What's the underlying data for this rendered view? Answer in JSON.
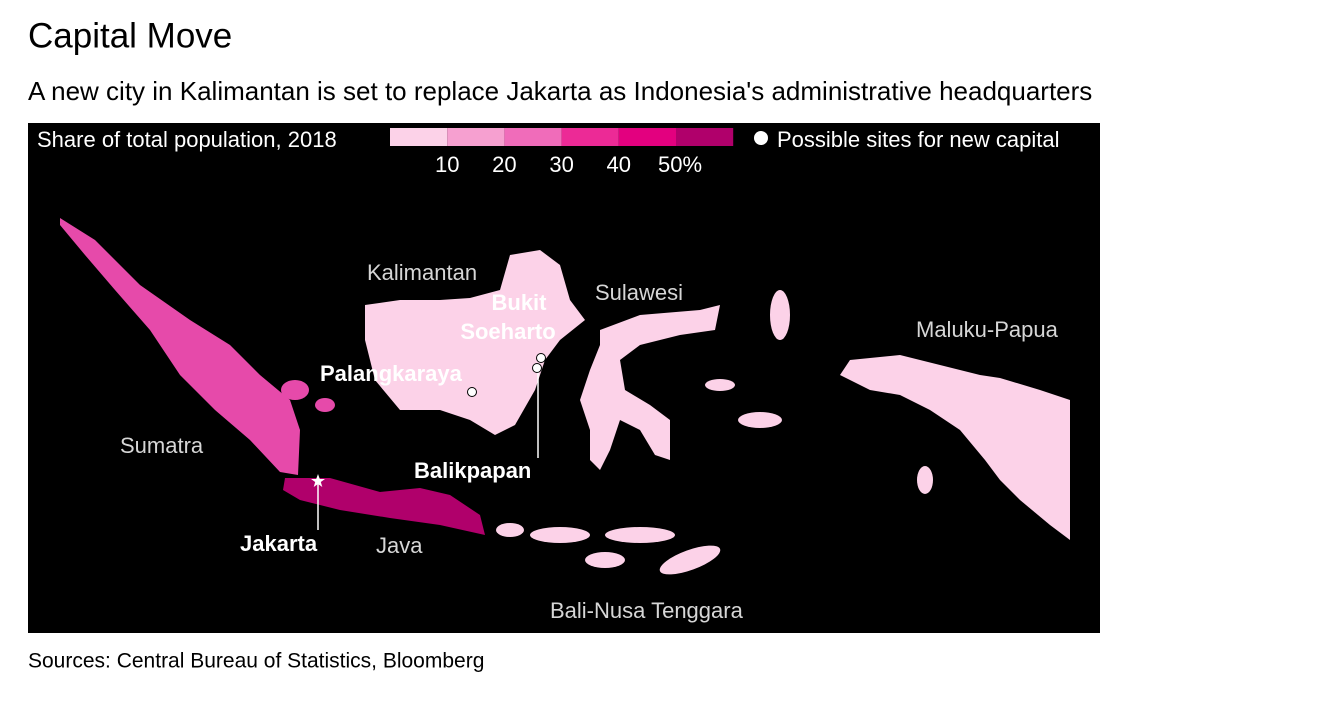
{
  "header": {
    "title": "Capital Move",
    "subtitle": "A new city in Kalimantan is set to replace Jakarta as Indonesia's administrative headquarters"
  },
  "legend": {
    "title": "Share of total population, 2018",
    "colors": [
      "#fcd2e8",
      "#f6a0d0",
      "#f06cba",
      "#ec2a96",
      "#e3007f",
      "#b0006b"
    ],
    "labels": [
      "10",
      "20",
      "30",
      "40",
      "50%"
    ],
    "sites_label": "Possible sites for new capital"
  },
  "regions": {
    "sumatra": "Sumatra",
    "java": "Java",
    "kalimantan": "Kalimantan",
    "sulawesi": "Sulawesi",
    "maluku_papua": "Maluku-Papua",
    "bali_nusa": "Bali-Nusa Tenggara"
  },
  "cities": {
    "bukit_soeharto": [
      "Bukit",
      "Soeharto"
    ],
    "palangkaraya": "Palangkaraya",
    "balikpapan": "Balikpapan",
    "jakarta": "Jakarta"
  },
  "footer": {
    "source": "Sources: Central Bureau of Statistics, Bloomberg"
  }
}
